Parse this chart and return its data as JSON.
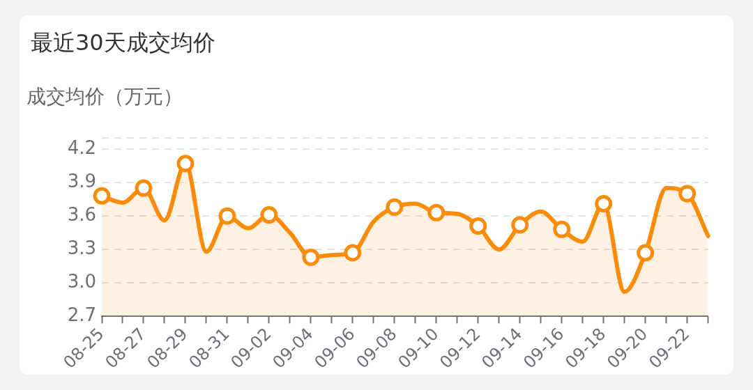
{
  "chart_data": {
    "type": "area",
    "title": "最近30天成交均价",
    "ylabel": "成交均价（万元）",
    "categories": [
      "08-25",
      null,
      "08-27",
      null,
      "08-29",
      null,
      "08-31",
      null,
      "09-02",
      null,
      "09-04",
      null,
      "09-06",
      null,
      "09-08",
      null,
      "09-10",
      null,
      "09-12",
      null,
      "09-14",
      null,
      "09-16",
      null,
      "09-18",
      null,
      "09-20",
      null,
      "09-22",
      null
    ],
    "series": [
      {
        "color": "#fa8c0a",
        "values": [
          3.78,
          3.72,
          3.85,
          3.56,
          4.07,
          3.28,
          3.6,
          3.49,
          3.61,
          3.45,
          3.23,
          3.25,
          3.27,
          3.55,
          3.68,
          3.71,
          3.63,
          3.62,
          3.51,
          3.3,
          3.52,
          3.64,
          3.48,
          3.37,
          3.71,
          2.92,
          3.27,
          3.85,
          3.8,
          3.42
        ]
      }
    ],
    "ylim": [
      2.7,
      4.3
    ],
    "yticks": [
      2.7,
      {
        "value": 3,
        "label": "3.0"
      },
      3.3,
      3.6,
      3.9,
      4.2,
      {
        "value": 4.3,
        "label": null
      }
    ],
    "grid": "y",
    "legend": false,
    "marker": "circle",
    "line_style": "solid"
  }
}
